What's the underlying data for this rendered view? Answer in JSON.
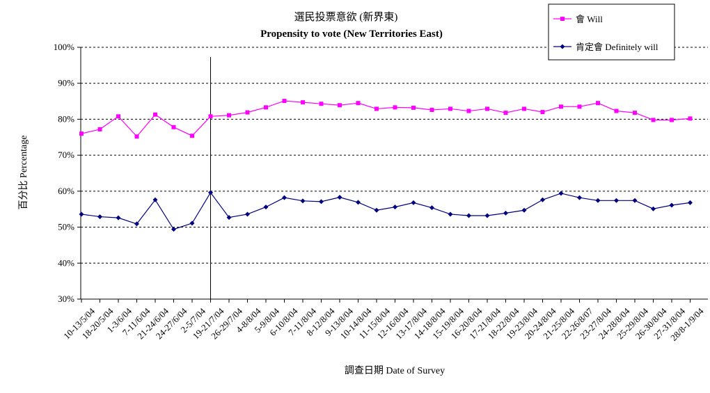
{
  "chart_data": {
    "type": "line",
    "title": "選民投票意欲 (新界東)",
    "subtitle": "Propensity to vote (New Territories East)",
    "xlabel": "調查日期 Date of Survey",
    "ylabel": "百分比 Percentage",
    "ylim": [
      30,
      100
    ],
    "yticks": [
      "30%",
      "40%",
      "50%",
      "60%",
      "70%",
      "80%",
      "90%",
      "100%"
    ],
    "grid": "horizontal dashed",
    "legend_position": "top-right",
    "categories": [
      "10-13/5/04",
      "18-20/5/04",
      "1-3/6/04",
      "7-11/6/04",
      "21-24/6/04",
      "24-27/6/04",
      "2-5/7/04",
      "19-21/7/04",
      "26-29/7/04",
      "4-8/8/04",
      "5-9/8/04",
      "6-10/8/04",
      "7-11/8/04",
      "8-12/8/04",
      "9-13/8/04",
      "10-14/8/04",
      "11-15/8/04",
      "12-16/8/04",
      "13-17/8/04",
      "14-18/8/04",
      "15-19/8/04",
      "16-20/8/04",
      "17-21/8/04",
      "18-22/8/04",
      "19-23/8/04",
      "20-24/8/04",
      "21-25/8/04",
      "22-26/8/07",
      "23-27/8/04",
      "24-28/8/04",
      "25-29/8/04",
      "26-30/8/04",
      "27-31/8/04",
      "28/8-1/9/04"
    ],
    "series": [
      {
        "name": "會 Will",
        "color": "#ff00ff",
        "marker": "square",
        "values": [
          76.0,
          77.2,
          80.8,
          75.2,
          81.3,
          77.8,
          75.4,
          80.8,
          81.1,
          81.9,
          83.3,
          85.1,
          84.7,
          84.3,
          83.9,
          84.5,
          82.9,
          83.3,
          83.2,
          82.6,
          82.9,
          82.3,
          82.9,
          81.8,
          82.9,
          82.0,
          83.5,
          83.5,
          84.5,
          82.3,
          81.8,
          79.8,
          79.8,
          80.2
        ]
      },
      {
        "name": "肯定會 Definitely will",
        "color": "#000080",
        "marker": "diamond",
        "values": [
          53.6,
          52.9,
          52.6,
          50.9,
          57.6,
          49.4,
          51.1,
          59.6,
          52.7,
          53.6,
          55.6,
          58.2,
          57.3,
          57.1,
          58.3,
          56.9,
          54.7,
          55.6,
          56.8,
          55.4,
          53.6,
          53.2,
          53.2,
          53.9,
          54.7,
          57.6,
          59.4,
          58.2,
          57.4,
          57.4,
          57.4,
          55.1,
          56.1,
          56.8
        ]
      }
    ],
    "annotations": [
      "vertical marker line at 19-21/7/04"
    ]
  }
}
